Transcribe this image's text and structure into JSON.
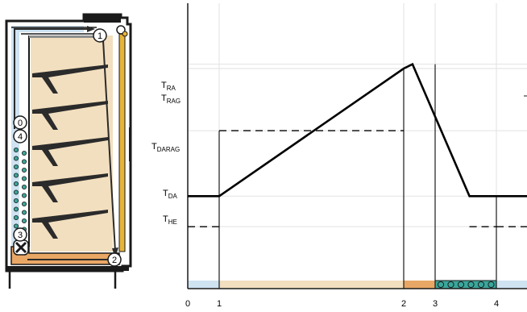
{
  "cabinet": {
    "point_labels": [
      "1",
      "2",
      "3",
      "0",
      "4"
    ],
    "colors": {
      "frame": "#1a1a1a",
      "product_zone": "#f2dfbf",
      "return_air_duct": "#cfe3f1",
      "door_channel": "#e7b43a",
      "bottom_duct": "#e9a765",
      "evaporator_dots": "#3aa79b",
      "shelf": "#2b2b2b",
      "air_path": "#2b2b2b"
    }
  },
  "chart_data": {
    "type": "line",
    "x_ticks": [
      "0",
      "1",
      "2",
      "3",
      "4"
    ],
    "x_values": [
      0,
      1,
      2,
      3,
      4
    ],
    "y_labels": [
      {
        "main": "T",
        "sub": "RA"
      },
      {
        "main": "T",
        "sub": "RAG"
      },
      {
        "main": "T",
        "sub": "DARAG"
      },
      {
        "main": "T",
        "sub": "DA"
      },
      {
        "main": "T",
        "sub": "HE"
      }
    ],
    "y_levels": {
      "T_HE": 0.21,
      "T_DA": 0.35,
      "T_DARAG": 0.65,
      "T_RAG": 0.935,
      "T_RA": 0.955
    },
    "series": [
      {
        "points": [
          [
            -1.0,
            0.35
          ],
          [
            1.0,
            0.35
          ],
          [
            2.0,
            0.935
          ],
          [
            2.28,
            0.955
          ],
          [
            3.56,
            0.35
          ],
          [
            4.0,
            0.35
          ]
        ]
      }
    ],
    "dashed_refs": [
      {
        "level": "T_DARAG",
        "from_x": 1.0,
        "to_x": 2.0
      },
      {
        "level": "T_HE",
        "from_x": -1.0,
        "to_x": 1.0
      },
      {
        "level": "T_HE",
        "from_x": 3.56,
        "to_x": 4.0
      }
    ],
    "segment_strip_colors": [
      "#cfe3f1",
      "#f2dfbf",
      "#e9a765",
      "#3aa79b",
      "#cfe3f1"
    ],
    "grid": true
  }
}
